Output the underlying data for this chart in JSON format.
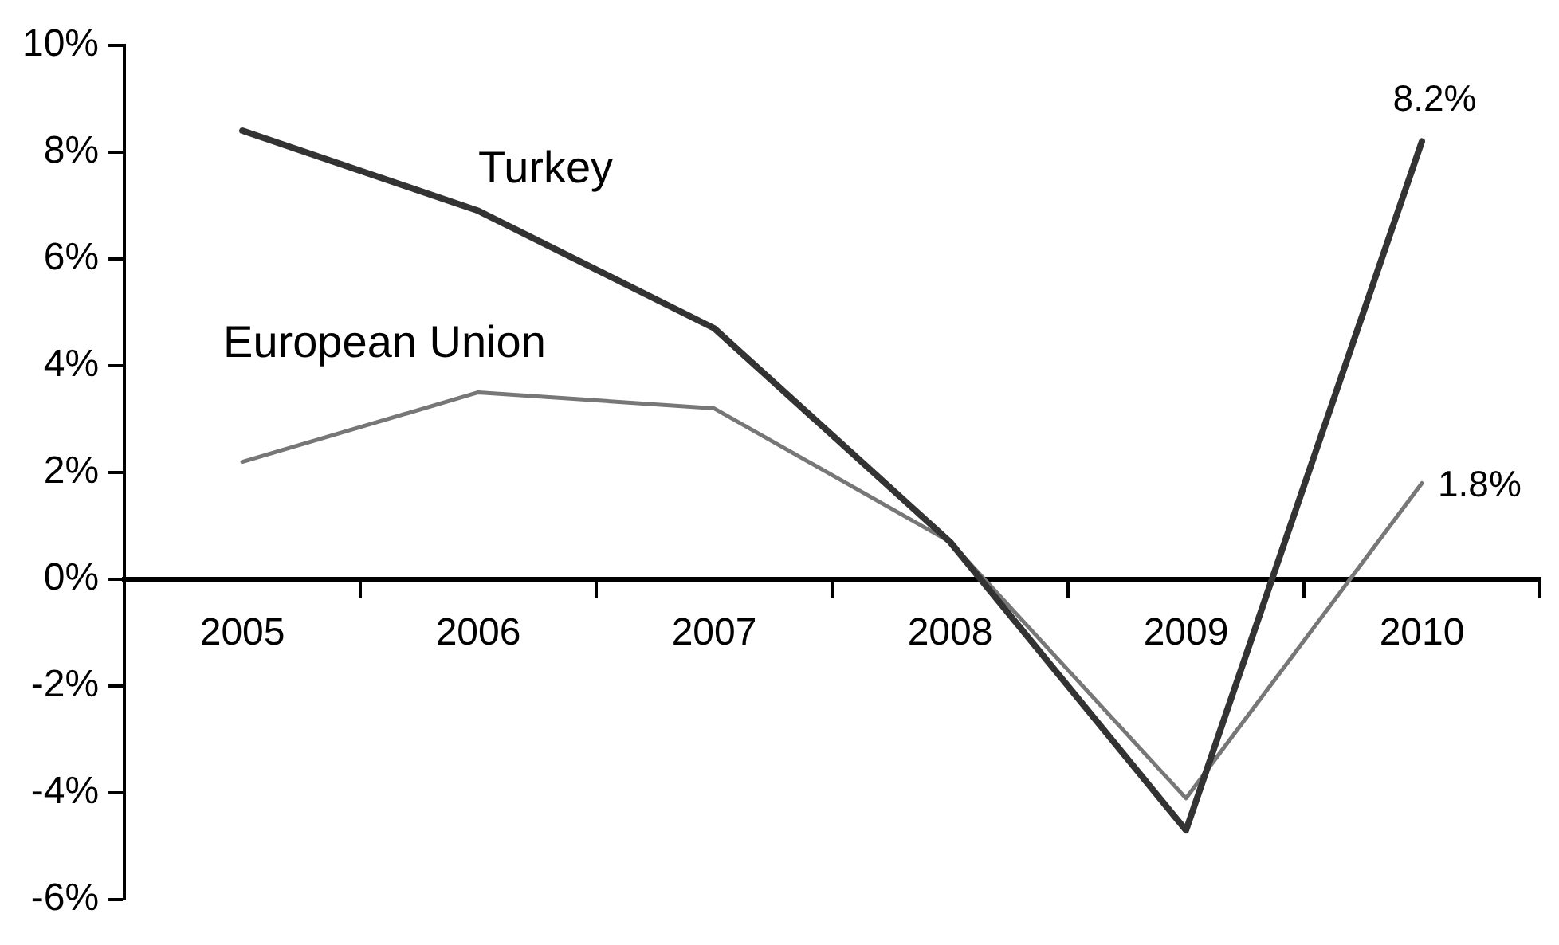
{
  "chart_data": {
    "type": "line",
    "categories": [
      "2005",
      "2006",
      "2007",
      "2008",
      "2009",
      "2010"
    ],
    "series": [
      {
        "name": "Turkey",
        "color": "#333333",
        "values": [
          8.4,
          6.9,
          4.7,
          0.7,
          -4.7,
          8.2
        ],
        "value_labels": [
          null,
          null,
          null,
          null,
          null,
          "8.2%"
        ]
      },
      {
        "name": "European Union",
        "color": "#777777",
        "values": [
          2.2,
          3.5,
          3.2,
          0.7,
          -4.1,
          1.8
        ],
        "value_labels": [
          null,
          null,
          null,
          null,
          null,
          "1.8%"
        ]
      }
    ],
    "ylim": [
      -6,
      10
    ],
    "yticks": [
      {
        "value": -6,
        "label": "-6%"
      },
      {
        "value": -4,
        "label": "-4%"
      },
      {
        "value": -2,
        "label": "-2%"
      },
      {
        "value": 0,
        "label": "0%"
      },
      {
        "value": 2,
        "label": "2%"
      },
      {
        "value": 4,
        "label": "4%"
      },
      {
        "value": 6,
        "label": "6%"
      },
      {
        "value": 8,
        "label": "8%"
      },
      {
        "value": 10,
        "label": "10%"
      }
    ],
    "grid": false,
    "legend": false,
    "marker": "none",
    "line_style": "solid"
  }
}
